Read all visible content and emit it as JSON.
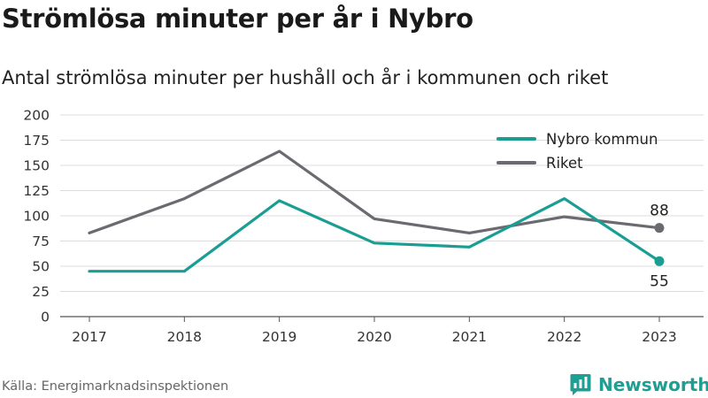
{
  "header": {
    "title": "Strömlösa minuter per år i Nybro",
    "subtitle": "Antal strömlösa minuter per hushåll och år i kommunen och riket"
  },
  "footer": {
    "source": "Källa: Energimarknadsinspektionen",
    "brand": "Newsworthy",
    "brand_icon": "bar-chart-logo-icon"
  },
  "chart_data": {
    "type": "line",
    "title": "Strömlösa minuter per år i Nybro",
    "subtitle": "Antal strömlösa minuter per hushåll och år i kommunen och riket",
    "xlabel": "",
    "ylabel": "",
    "x": [
      "2017",
      "2018",
      "2019",
      "2020",
      "2021",
      "2022",
      "2023"
    ],
    "ylim": [
      0,
      200
    ],
    "yticks": [
      "0",
      "25",
      "50",
      "75",
      "100",
      "125",
      "150",
      "175",
      "200"
    ],
    "grid": true,
    "legend": "top-right",
    "series": [
      {
        "name": "Nybro kommun",
        "color": "#1a9e93",
        "values": [
          45,
          45,
          115,
          73,
          69,
          117,
          55
        ],
        "end_label": "55"
      },
      {
        "name": "Riket",
        "color": "#6b6a70",
        "values": [
          83,
          117,
          164,
          97,
          83,
          99,
          88
        ],
        "end_label": "88"
      }
    ]
  }
}
